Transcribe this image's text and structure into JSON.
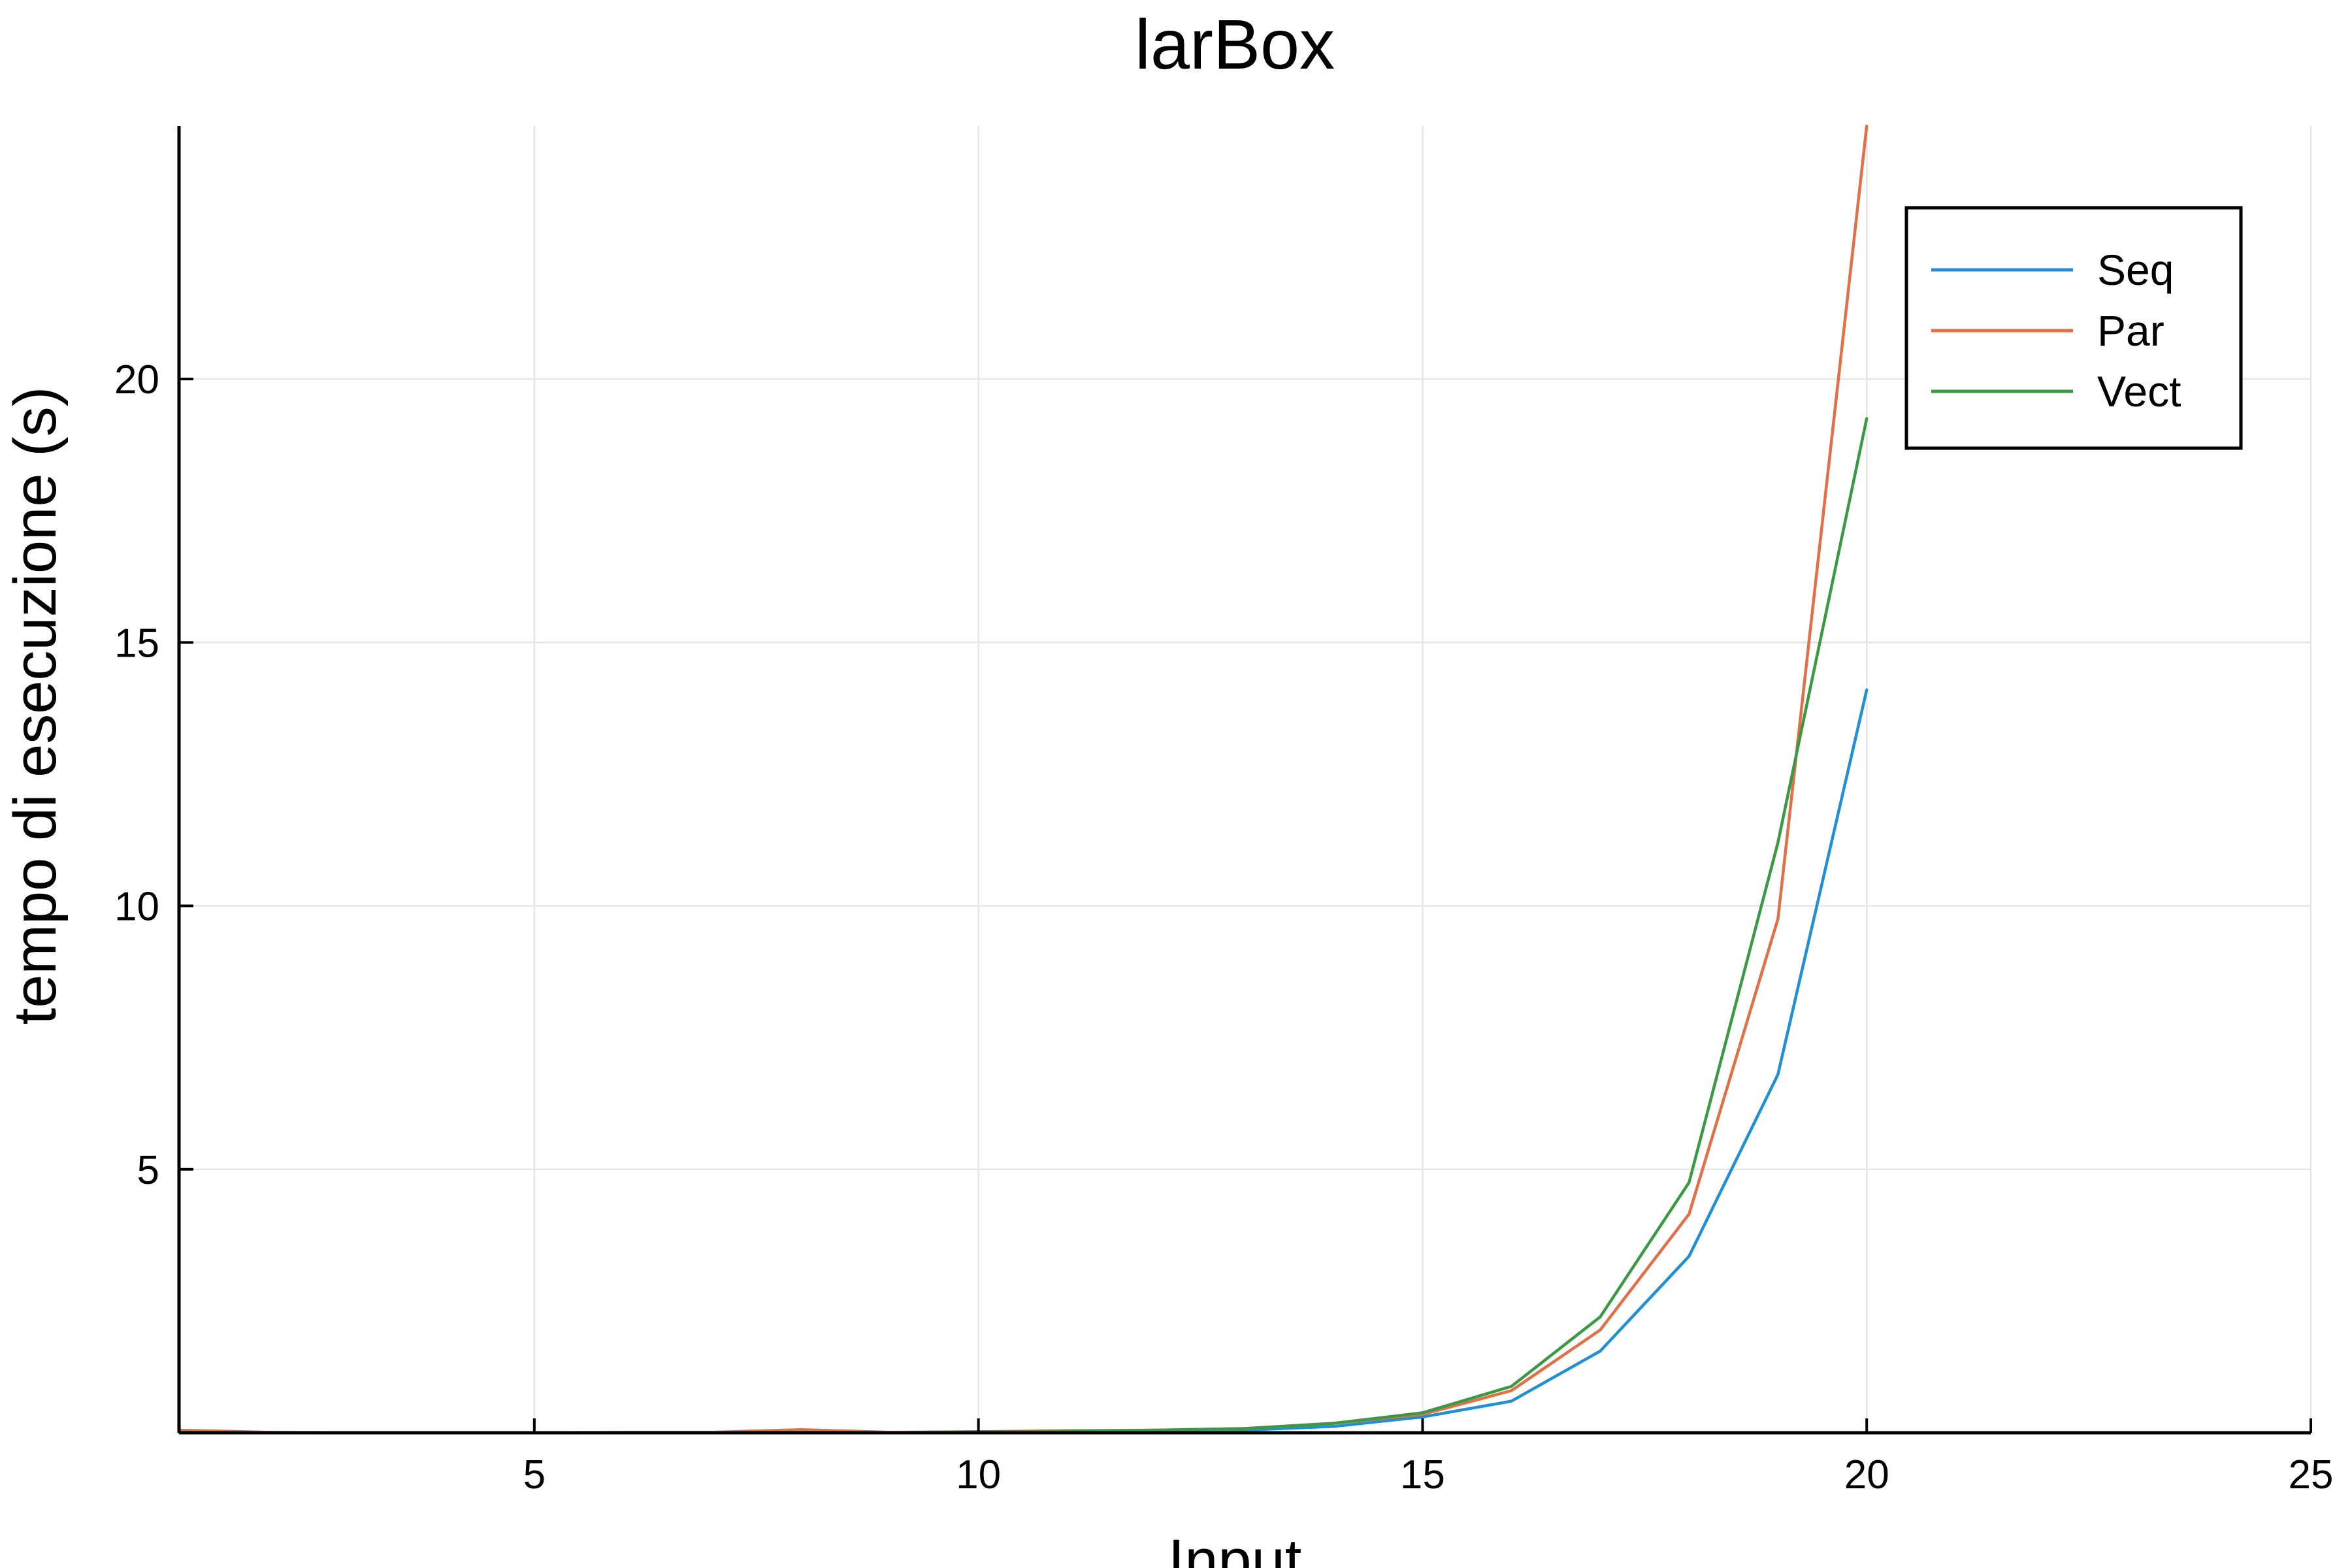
{
  "chart_data": {
    "type": "line",
    "title": "larBox",
    "xlabel": "Input",
    "ylabel": "tempo di esecuzione (s)",
    "xlim": [
      1,
      25
    ],
    "ylim": [
      0,
      24.8
    ],
    "xticks": [
      5,
      10,
      15,
      20,
      25
    ],
    "yticks": [
      5,
      10,
      15,
      20
    ],
    "grid": true,
    "legend_position": "top-right",
    "x": [
      1,
      2,
      3,
      4,
      5,
      6,
      7,
      8,
      9,
      10,
      11,
      12,
      13,
      14,
      15,
      16,
      17,
      18,
      19,
      20
    ],
    "series": [
      {
        "name": "Seq",
        "color": "#1f8fd8",
        "values": [
          0.02,
          0.0,
          0.0,
          0.0,
          0.0,
          0.0,
          0.0,
          0.01,
          0.0,
          0.01,
          0.02,
          0.03,
          0.05,
          0.12,
          0.3,
          0.6,
          1.55,
          3.35,
          6.8,
          14.1
        ]
      },
      {
        "name": "Par",
        "color": "#e26f46",
        "values": [
          0.05,
          0.01,
          0.0,
          0.0,
          0.0,
          0.01,
          0.01,
          0.06,
          0.01,
          0.02,
          0.04,
          0.05,
          0.08,
          0.18,
          0.35,
          0.8,
          1.95,
          4.15,
          9.75,
          24.8
        ]
      },
      {
        "name": "Vect",
        "color": "#3a9a43",
        "values": [
          0.01,
          0.0,
          0.0,
          0.0,
          0.0,
          0.0,
          0.0,
          0.01,
          0.0,
          0.02,
          0.03,
          0.05,
          0.08,
          0.18,
          0.38,
          0.88,
          2.2,
          4.75,
          11.2,
          19.25
        ]
      }
    ]
  }
}
